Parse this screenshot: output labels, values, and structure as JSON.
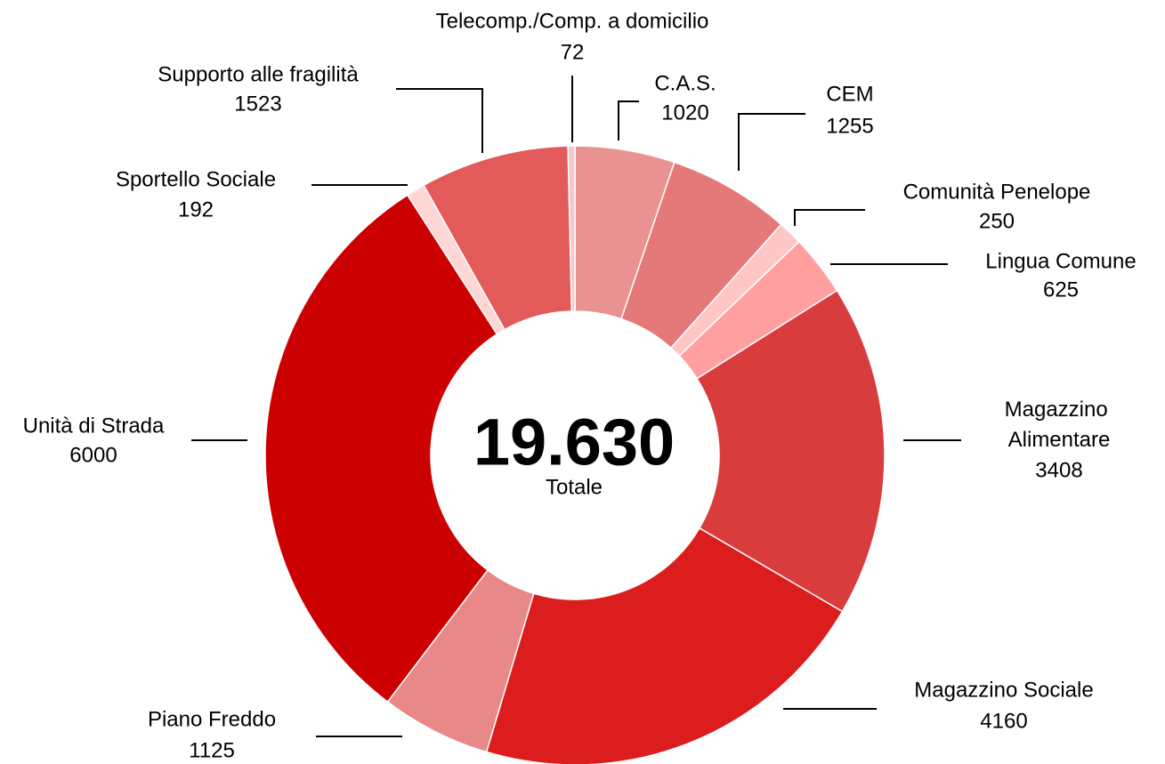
{
  "chart_data": {
    "type": "donut",
    "categories": [
      "Telecomp./Comp. a domicilio",
      "C.A.S.",
      "CEM",
      "Comunità Penelope",
      "Lingua Comune",
      "Magazzino Alimentare",
      "Magazzino Sociale",
      "Piano Freddo",
      "Unità di Strada",
      "Sportello Sociale",
      "Supporto alle fragilità"
    ],
    "values": [
      72,
      1020,
      1255,
      250,
      625,
      3408,
      4160,
      1125,
      6000,
      192,
      1523
    ],
    "colors": [
      "#f4c9c9",
      "#e99292",
      "#e57878",
      "#ffc6c6",
      "#ff9f9f",
      "#d93c3c",
      "#dc1d1d",
      "#e88888",
      "#cc0000",
      "#ffd6d6",
      "#e35a5a"
    ],
    "total": {
      "value": 19630,
      "label": "19.630"
    },
    "total_label": "Totale"
  }
}
